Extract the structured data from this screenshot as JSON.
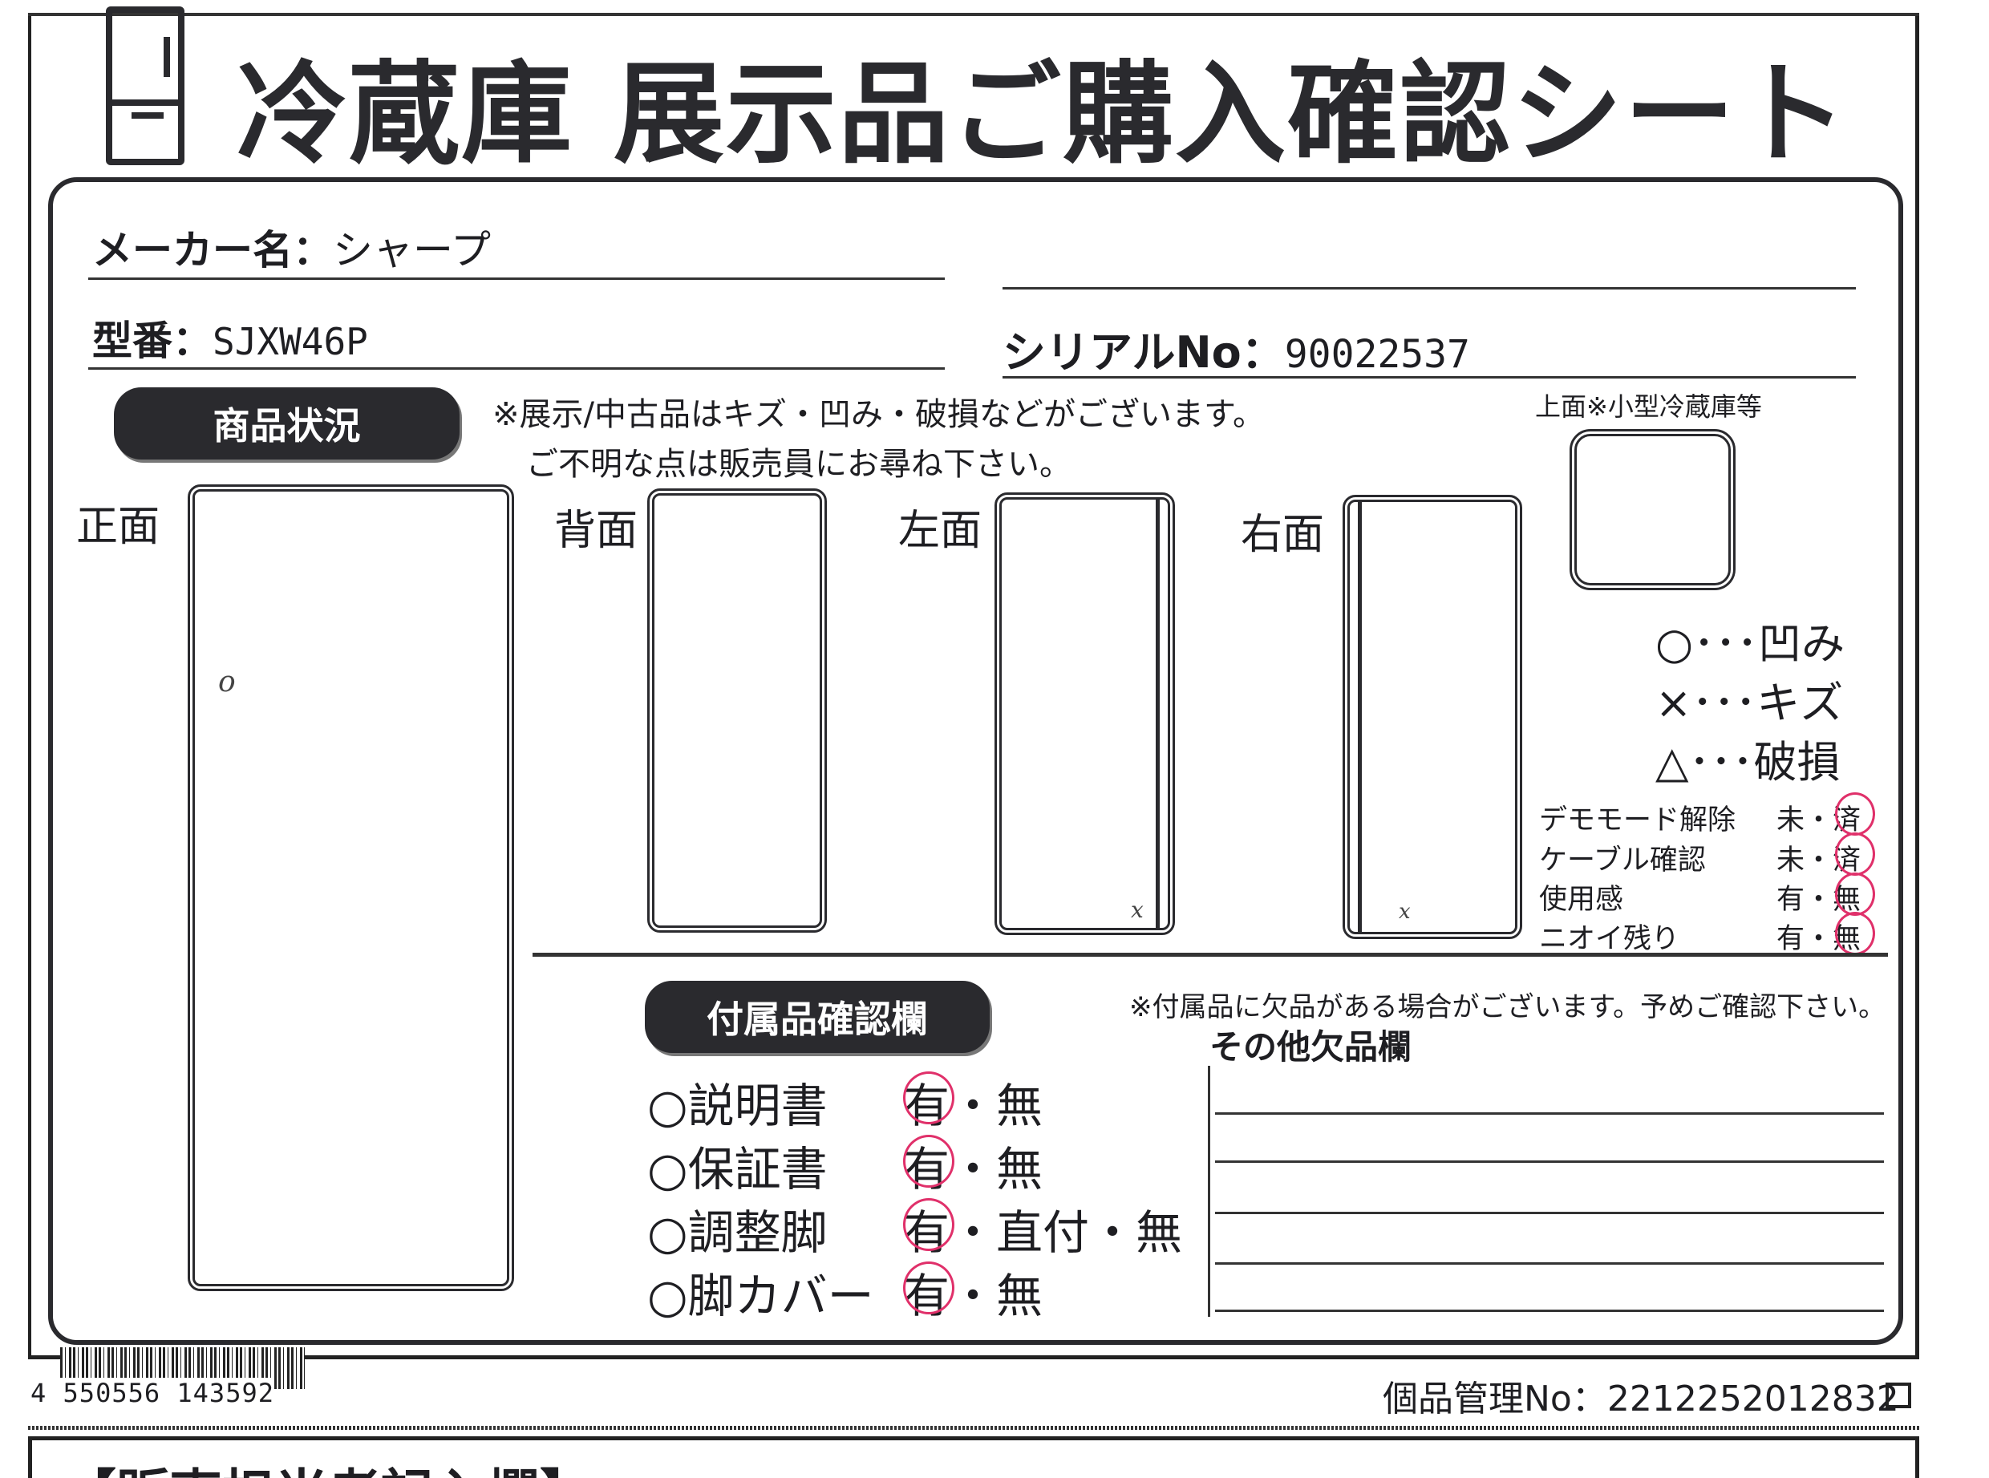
{
  "title": "冷蔵庫 展示品ご購入確認シート",
  "maker": {
    "label": "メーカー名：",
    "value": "シャープ"
  },
  "model": {
    "label": "型番：",
    "value": "SJXW46P"
  },
  "serial": {
    "label": "シリアルNo：",
    "value": "90022537"
  },
  "condition": {
    "heading": "商品状況",
    "note_line1": "※展示/中古品はキズ・凹み・破損などがございます。",
    "note_line2": "ご不明な点は販売員にお尋ね下さい。",
    "top_label": "上面※小型冷蔵庫等",
    "views": {
      "front": "正面",
      "back": "背面",
      "left": "左面",
      "right": "右面"
    },
    "marks": {
      "front": "o",
      "left": "x",
      "right": "x"
    },
    "legend": [
      {
        "symbol": "○",
        "dots": "･･･",
        "meaning": "凹み"
      },
      {
        "symbol": "×",
        "dots": "･･･",
        "meaning": "キズ"
      },
      {
        "symbol": "△",
        "dots": "･･･",
        "meaning": "破損"
      }
    ],
    "checks": [
      {
        "label": "デモモード解除",
        "opt1": "未",
        "sep": "・",
        "opt2": "済",
        "selected": "済"
      },
      {
        "label": "ケーブル確認",
        "opt1": "未",
        "sep": "・",
        "opt2": "済",
        "selected": "済"
      },
      {
        "label": "使用感",
        "opt1": "有",
        "sep": "・",
        "opt2": "無",
        "selected": "無"
      },
      {
        "label": "ニオイ残り",
        "opt1": "有",
        "sep": "・",
        "opt2": "無",
        "selected": "無"
      }
    ]
  },
  "accessories": {
    "heading": "付属品確認欄",
    "note": "※付属品に欠品がある場合がございます。予めご確認下さい。",
    "other_heading": "その他欠品欄",
    "items": [
      {
        "label": "○説明書",
        "options": "・無",
        "selected": "有"
      },
      {
        "label": "○保証書",
        "options": "・無",
        "selected": "有"
      },
      {
        "label": "○調整脚",
        "options": "・直付・無",
        "selected": "有"
      },
      {
        "label": "○脚カバー",
        "options": "・無",
        "selected": "有"
      }
    ]
  },
  "barcode": {
    "digits": "4 550556 143592"
  },
  "item_no": {
    "label": "個品管理No：",
    "value": "2212252012832"
  },
  "bottom_heading": "【販売担当者記入欄】",
  "colors": {
    "ink": "#222222",
    "pen_red": "#e0306a"
  }
}
